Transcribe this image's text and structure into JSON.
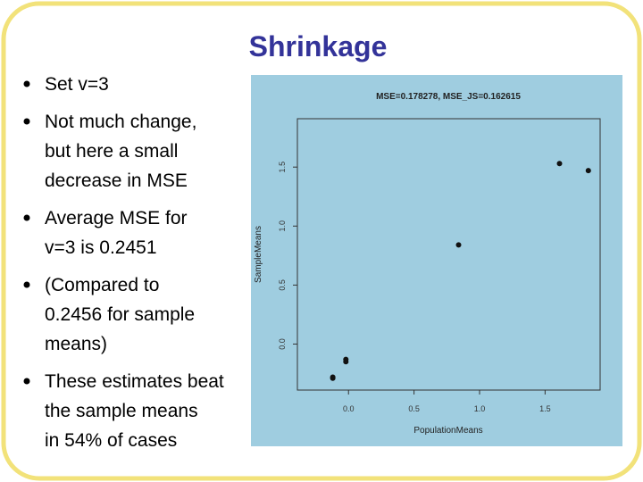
{
  "title": "Shrinkage",
  "bullets": [
    [
      "Set v=3"
    ],
    [
      "Not much change,",
      "but here a small",
      "decrease in MSE"
    ],
    [
      "Average MSE for",
      "v=3 is 0.2451"
    ],
    [
      "(Compared to",
      "0.2456 for sample",
      "means)"
    ],
    [
      "These estimates beat",
      "the sample means",
      "in 54% of cases"
    ]
  ],
  "chart_data": {
    "type": "scatter",
    "title": "MSE=0.178278, MSE_JS=0.162615",
    "x_label": "PopulationMeans",
    "y_label": "SampleMeans",
    "x": [
      -0.12,
      -0.12,
      -0.02,
      -0.02,
      0.84,
      1.61,
      1.83
    ],
    "values": [
      -0.29,
      -0.28,
      -0.13,
      -0.15,
      0.84,
      1.53,
      1.47
    ],
    "color": "#111111",
    "xlim": [
      -0.39,
      1.92
    ],
    "ylim": [
      -0.39,
      1.91
    ],
    "xticks": [
      {
        "value": 0,
        "label": "0.0"
      },
      0.5,
      {
        "value": 1,
        "label": "1.0"
      },
      1.5
    ],
    "yticks": [
      {
        "value": 0,
        "label": "0.0"
      },
      0.5,
      {
        "value": 1,
        "label": "1.0"
      },
      1.5
    ]
  }
}
